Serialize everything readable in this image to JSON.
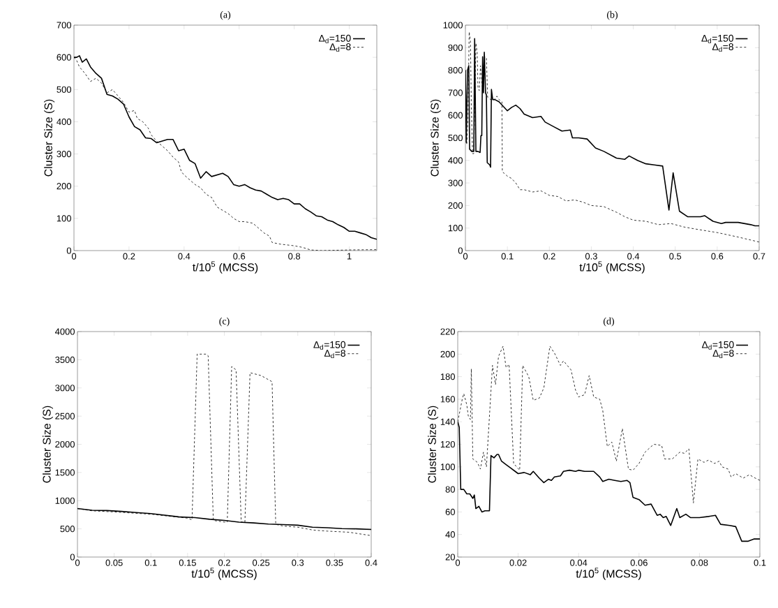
{
  "chart_data": [
    {
      "type": "line",
      "title": "(a)",
      "xlabel": "t/10$^{5}$ (MCSS)",
      "ylabel": "Cluster Size (S)",
      "xlim": [
        0,
        1.1
      ],
      "ylim": [
        0,
        700
      ],
      "xticks": [
        0,
        0.2,
        0.4,
        0.6,
        0.8,
        1
      ],
      "yticks": [
        0,
        100,
        200,
        300,
        400,
        500,
        600,
        700
      ],
      "legend": "top right",
      "grid": false,
      "marker": "none",
      "series": [
        {
          "name": "Δ$_{d}$=150",
          "color": "#000000",
          "line_style": "solid",
          "x": [
            0,
            0.01,
            0.02,
            0.03,
            0.045,
            0.06,
            0.08,
            0.1,
            0.12,
            0.14,
            0.16,
            0.18,
            0.2,
            0.22,
            0.24,
            0.26,
            0.28,
            0.3,
            0.32,
            0.34,
            0.36,
            0.38,
            0.4,
            0.42,
            0.44,
            0.46,
            0.48,
            0.5,
            0.52,
            0.54,
            0.56,
            0.58,
            0.6,
            0.62,
            0.64,
            0.66,
            0.68,
            0.7,
            0.72,
            0.74,
            0.76,
            0.78,
            0.8,
            0.82,
            0.84,
            0.86,
            0.88,
            0.9,
            0.92,
            0.94,
            0.96,
            0.98,
            1.0,
            1.02,
            1.04,
            1.06,
            1.08,
            1.1
          ],
          "values": [
            600,
            600,
            605,
            585,
            595,
            570,
            550,
            535,
            485,
            480,
            470,
            455,
            415,
            385,
            375,
            350,
            348,
            335,
            340,
            345,
            345,
            310,
            315,
            280,
            270,
            225,
            245,
            230,
            235,
            240,
            230,
            205,
            200,
            205,
            195,
            188,
            185,
            175,
            165,
            158,
            162,
            158,
            145,
            145,
            130,
            120,
            108,
            105,
            95,
            90,
            80,
            72,
            60,
            60,
            55,
            50,
            40,
            35
          ]
        },
        {
          "name": "Δ$_{d}$=8",
          "color": "#000000",
          "line_style": "dashed",
          "x": [
            0,
            0.01,
            0.02,
            0.04,
            0.06,
            0.08,
            0.1,
            0.12,
            0.14,
            0.16,
            0.18,
            0.2,
            0.22,
            0.23,
            0.25,
            0.27,
            0.28,
            0.3,
            0.32,
            0.34,
            0.36,
            0.38,
            0.39,
            0.4,
            0.42,
            0.44,
            0.46,
            0.48,
            0.5,
            0.52,
            0.54,
            0.56,
            0.58,
            0.6,
            0.62,
            0.65,
            0.67,
            0.69,
            0.71,
            0.72,
            0.75,
            0.8,
            0.83,
            0.86,
            0.9,
            1.0,
            1.1
          ],
          "values": [
            600,
            590,
            570,
            550,
            525,
            535,
            520,
            490,
            500,
            480,
            460,
            430,
            435,
            410,
            400,
            380,
            360,
            340,
            325,
            310,
            290,
            275,
            245,
            235,
            220,
            205,
            195,
            175,
            165,
            135,
            125,
            115,
            100,
            90,
            90,
            85,
            70,
            55,
            45,
            25,
            20,
            15,
            10,
            2,
            0,
            2,
            3
          ]
        }
      ]
    },
    {
      "type": "line",
      "title": "(b)",
      "xlabel": "t/10$^{5}$ (MCSS)",
      "ylabel": "Cluster Size (S)",
      "xlim": [
        0,
        0.7
      ],
      "ylim": [
        0,
        1000
      ],
      "xticks": [
        0,
        0.1,
        0.2,
        0.3,
        0.4,
        0.5,
        0.6,
        0.7
      ],
      "yticks": [
        0,
        100,
        200,
        300,
        400,
        500,
        600,
        700,
        800,
        900,
        1000
      ],
      "legend": "top right",
      "grid": false,
      "marker": "none",
      "series": [
        {
          "name": "Δ$_{d}$=150",
          "color": "#000000",
          "line_style": "solid",
          "x": [
            0,
            0.002,
            0.005,
            0.008,
            0.01,
            0.015,
            0.02,
            0.022,
            0.025,
            0.03,
            0.035,
            0.037,
            0.039,
            0.041,
            0.043,
            0.045,
            0.048,
            0.05,
            0.052,
            0.058,
            0.06,
            0.062,
            0.065,
            0.07,
            0.08,
            0.09,
            0.1,
            0.11,
            0.12,
            0.13,
            0.14,
            0.16,
            0.18,
            0.19,
            0.21,
            0.23,
            0.25,
            0.255,
            0.27,
            0.29,
            0.31,
            0.33,
            0.36,
            0.38,
            0.39,
            0.41,
            0.43,
            0.45,
            0.47,
            0.485,
            0.495,
            0.51,
            0.53,
            0.56,
            0.57,
            0.59,
            0.61,
            0.62,
            0.65,
            0.68,
            0.69,
            0.7
          ],
          "values": [
            800,
            480,
            800,
            820,
            450,
            440,
            440,
            940,
            440,
            440,
            435,
            510,
            510,
            860,
            700,
            880,
            700,
            690,
            390,
            380,
            370,
            715,
            670,
            670,
            660,
            640,
            620,
            635,
            645,
            630,
            605,
            590,
            595,
            570,
            550,
            530,
            535,
            500,
            500,
            495,
            455,
            440,
            410,
            405,
            420,
            400,
            385,
            380,
            375,
            180,
            345,
            175,
            150,
            150,
            155,
            130,
            120,
            125,
            125,
            115,
            110,
            110
          ]
        },
        {
          "name": "Δ$_{d}$=8",
          "color": "#000000",
          "line_style": "dashed",
          "x": [
            0,
            0.003,
            0.006,
            0.009,
            0.012,
            0.014,
            0.017,
            0.02,
            0.025,
            0.028,
            0.03,
            0.033,
            0.036,
            0.039,
            0.042,
            0.046,
            0.05,
            0.053,
            0.06,
            0.07,
            0.075,
            0.08,
            0.087,
            0.088,
            0.1,
            0.11,
            0.12,
            0.13,
            0.14,
            0.16,
            0.18,
            0.2,
            0.22,
            0.24,
            0.26,
            0.28,
            0.3,
            0.33,
            0.36,
            0.38,
            0.4,
            0.43,
            0.46,
            0.49,
            0.52,
            0.55,
            0.6,
            0.65,
            0.7
          ],
          "values": [
            800,
            470,
            580,
            970,
            930,
            650,
            430,
            430,
            920,
            880,
            720,
            710,
            820,
            750,
            700,
            860,
            855,
            680,
            670,
            670,
            685,
            670,
            660,
            350,
            330,
            320,
            300,
            270,
            270,
            260,
            265,
            245,
            240,
            220,
            225,
            215,
            200,
            195,
            170,
            150,
            135,
            130,
            115,
            120,
            105,
            95,
            80,
            60,
            38
          ]
        }
      ]
    },
    {
      "type": "line",
      "title": "(c)",
      "xlabel": "t/10$^{5}$ (MCSS)",
      "ylabel": "Cluster Size (S)",
      "xlim": [
        0,
        0.4
      ],
      "ylim": [
        0,
        4000
      ],
      "xticks": [
        0,
        0.05,
        0.1,
        0.15,
        0.2,
        0.25,
        0.3,
        0.35,
        0.4
      ],
      "yticks": [
        0,
        500,
        1000,
        1500,
        2000,
        2500,
        3000,
        3500,
        4000
      ],
      "legend": "top right",
      "grid": false,
      "marker": "none",
      "series": [
        {
          "name": "Δ$_{d}$=150",
          "color": "#000000",
          "line_style": "solid",
          "x": [
            0,
            0.02,
            0.04,
            0.06,
            0.08,
            0.1,
            0.12,
            0.14,
            0.16,
            0.18,
            0.2,
            0.22,
            0.24,
            0.26,
            0.28,
            0.3,
            0.32,
            0.34,
            0.36,
            0.38,
            0.4
          ],
          "values": [
            860,
            830,
            825,
            810,
            790,
            770,
            740,
            710,
            700,
            670,
            650,
            620,
            605,
            585,
            575,
            565,
            530,
            520,
            505,
            500,
            490
          ]
        },
        {
          "name": "Δ$_{d}$=8",
          "color": "#000000",
          "line_style": "dashed",
          "x": [
            0,
            0.02,
            0.05,
            0.1,
            0.15,
            0.156,
            0.163,
            0.175,
            0.178,
            0.185,
            0.2,
            0.204,
            0.21,
            0.216,
            0.223,
            0.228,
            0.235,
            0.25,
            0.265,
            0.27,
            0.28,
            0.3,
            0.32,
            0.34,
            0.37,
            0.4
          ],
          "values": [
            860,
            820,
            800,
            760,
            690,
            660,
            3600,
            3600,
            3570,
            650,
            620,
            620,
            3380,
            3320,
            620,
            620,
            3270,
            3220,
            3110,
            580,
            550,
            530,
            480,
            460,
            440,
            380
          ]
        }
      ]
    },
    {
      "type": "line",
      "title": "(d)",
      "xlabel": "t/10$^{5}$ (MCSS)",
      "ylabel": "Cluster Size (S)",
      "xlim": [
        0,
        0.1
      ],
      "ylim": [
        20,
        220
      ],
      "xticks": [
        0,
        0.02,
        0.04,
        0.06,
        0.08,
        0.1
      ],
      "yticks": [
        20,
        40,
        60,
        80,
        100,
        120,
        140,
        160,
        180,
        200,
        220
      ],
      "legend": "top right",
      "grid": false,
      "marker": "none",
      "series": [
        {
          "name": "Δ$_{d}$=150",
          "color": "#000000",
          "line_style": "solid",
          "x": [
            0,
            0.0005,
            0.001,
            0.002,
            0.003,
            0.004,
            0.005,
            0.0055,
            0.006,
            0.007,
            0.008,
            0.009,
            0.0105,
            0.011,
            0.012,
            0.013,
            0.0135,
            0.0145,
            0.016,
            0.0175,
            0.019,
            0.02,
            0.022,
            0.024,
            0.025,
            0.027,
            0.0285,
            0.03,
            0.031,
            0.032,
            0.034,
            0.035,
            0.037,
            0.039,
            0.04,
            0.042,
            0.045,
            0.047,
            0.048,
            0.05,
            0.052,
            0.054,
            0.056,
            0.057,
            0.058,
            0.06,
            0.062,
            0.064,
            0.066,
            0.067,
            0.068,
            0.069,
            0.0705,
            0.0725,
            0.0735,
            0.0755,
            0.077,
            0.08,
            0.083,
            0.0853,
            0.087,
            0.09,
            0.092,
            0.094,
            0.096,
            0.098,
            0.1
          ],
          "values": [
            140,
            135,
            80,
            80,
            76,
            76,
            72,
            75,
            63,
            65,
            60,
            61,
            61,
            110,
            108,
            111,
            111,
            105,
            102,
            99,
            96,
            94,
            95,
            93,
            96,
            90,
            86,
            89,
            88,
            91,
            92,
            96,
            97,
            96,
            97,
            96,
            96,
            91,
            87,
            89,
            88,
            87,
            88,
            86,
            73,
            71,
            66,
            67,
            57,
            58,
            55,
            56,
            48,
            63,
            55,
            58,
            55,
            55,
            56,
            57,
            49,
            48,
            47,
            34,
            34,
            36,
            36
          ]
        },
        {
          "name": "Δ$_{d}$=8",
          "color": "#000000",
          "line_style": "dashed",
          "x": [
            0,
            0.0015,
            0.002,
            0.003,
            0.0035,
            0.0042,
            0.0045,
            0.005,
            0.0065,
            0.0075,
            0.0085,
            0.0095,
            0.0115,
            0.0125,
            0.0135,
            0.015,
            0.016,
            0.017,
            0.0185,
            0.0205,
            0.0215,
            0.0235,
            0.025,
            0.027,
            0.0285,
            0.0305,
            0.032,
            0.034,
            0.035,
            0.0375,
            0.039,
            0.04,
            0.042,
            0.0435,
            0.045,
            0.047,
            0.048,
            0.0495,
            0.051,
            0.0525,
            0.0545,
            0.0565,
            0.058,
            0.06,
            0.062,
            0.064,
            0.065,
            0.0675,
            0.0685,
            0.071,
            0.0735,
            0.075,
            0.0765,
            0.078,
            0.0795,
            0.0815,
            0.083,
            0.085,
            0.0865,
            0.0875,
            0.0895,
            0.0905,
            0.092,
            0.0945,
            0.0965,
            0.0985,
            0.1
          ],
          "values": [
            140,
            160,
            165,
            155,
            145,
            142,
            187,
            107,
            104,
            98,
            113,
            100,
            190,
            173,
            198,
            207,
            188,
            191,
            103,
            97,
            190,
            180,
            159,
            161,
            170,
            207,
            201,
            190,
            194,
            186,
            168,
            162,
            164,
            181,
            162,
            160,
            150,
            118,
            122,
            105,
            134,
            98,
            97,
            103,
            113,
            118,
            120,
            119,
            107,
            107,
            113,
            112,
            116,
            68,
            107,
            104,
            106,
            103,
            105,
            100,
            98,
            91,
            94,
            90,
            93,
            90,
            88
          ]
        }
      ]
    }
  ]
}
